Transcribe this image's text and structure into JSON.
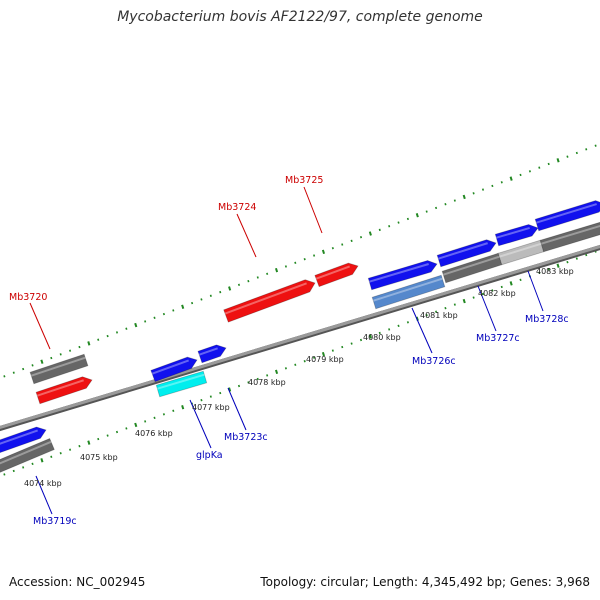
{
  "title": "Mycobacterium bovis AF2122/97, complete genome",
  "footer": {
    "accession": "Accession: NC_002945",
    "summary": "Topology: circular; Length: 4,345,492 bp; Genes: 3,968"
  },
  "colors": {
    "forward_gene": "#ee1111",
    "reverse_gene": "#1111ee",
    "rna_gene": "#00eeee",
    "cds_track": "#666666",
    "pseudo_track": "#bbbbbb",
    "highlight_track": "#5588cc",
    "ticks": "#228822",
    "forward_label": "#cc0000",
    "reverse_label": "#0000bb"
  },
  "scale": {
    "ticks": [
      {
        "label": "4074 kbp"
      },
      {
        "label": "4075 kbp"
      },
      {
        "label": "4076 kbp"
      },
      {
        "label": "4077 kbp"
      },
      {
        "label": "4078 kbp"
      },
      {
        "label": "4079 kbp"
      },
      {
        "label": "4080 kbp"
      },
      {
        "label": "4081 kbp"
      },
      {
        "label": "4082 kbp"
      },
      {
        "label": "4083 kbp"
      }
    ]
  },
  "genes": [
    {
      "name": "Mb3720",
      "strand": "forward"
    },
    {
      "name": "Mb3724",
      "strand": "forward"
    },
    {
      "name": "Mb3725",
      "strand": "forward"
    },
    {
      "name": "Mb3719c",
      "strand": "reverse"
    },
    {
      "name": "glpKa",
      "strand": "reverse"
    },
    {
      "name": "Mb3723c",
      "strand": "reverse"
    },
    {
      "name": "Mb3726c",
      "strand": "reverse"
    },
    {
      "name": "Mb3727c",
      "strand": "reverse"
    },
    {
      "name": "Mb3728c",
      "strand": "reverse"
    }
  ]
}
